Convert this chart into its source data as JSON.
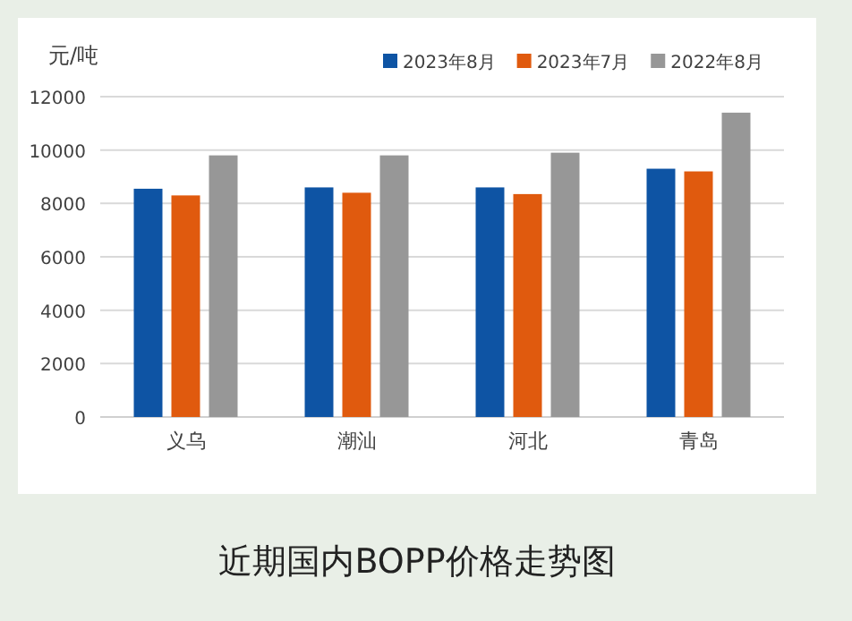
{
  "chart_data": {
    "type": "bar",
    "title": "近期国内BOPP价格走势图",
    "ylabel": "元/吨",
    "categories": [
      "义乌",
      "潮汕",
      "河北",
      "青岛"
    ],
    "series": [
      {
        "name": "2023年8月",
        "color": "#0e54a4",
        "values": [
          8550,
          8600,
          8600,
          9300
        ]
      },
      {
        "name": "2023年7月",
        "color": "#e05a0e",
        "values": [
          8300,
          8400,
          8350,
          9200
        ]
      },
      {
        "name": "2022年8月",
        "color": "#979797",
        "values": [
          9800,
          9800,
          9900,
          11400
        ]
      }
    ],
    "ylim": [
      0,
      12000
    ],
    "yticks": [
      0,
      2000,
      4000,
      6000,
      8000,
      10000,
      12000
    ],
    "grid": "y",
    "legend": "top right"
  }
}
